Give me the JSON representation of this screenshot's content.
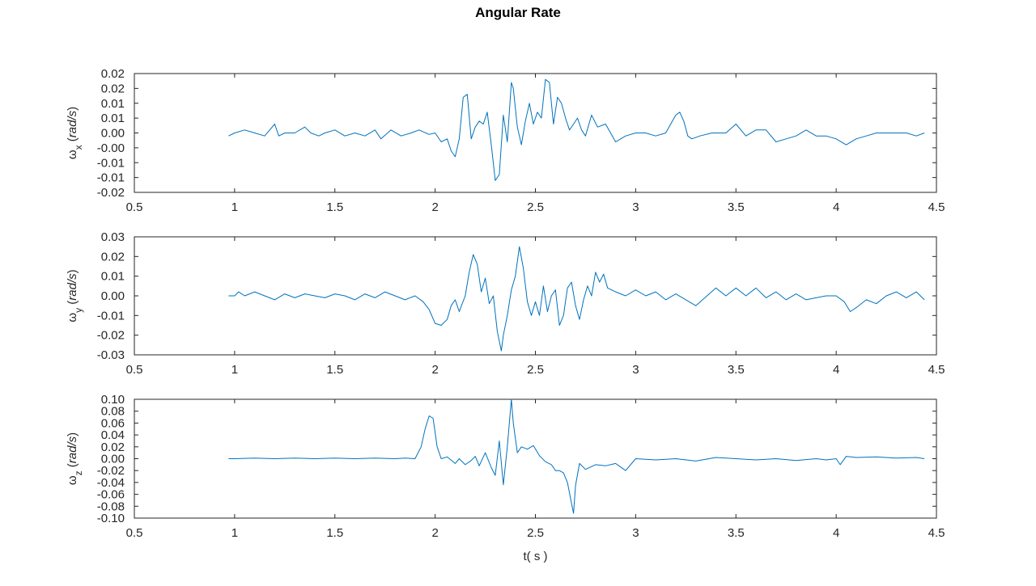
{
  "figure": {
    "title": "Angular Rate",
    "x_label": "t( s )",
    "colors": {
      "line": "#0072bd",
      "axis": "#262626",
      "background": "#ffffff"
    }
  },
  "chart_data": [
    {
      "type": "line",
      "title": "",
      "ylabel": "ωx (rad/s)",
      "ylabel_base": "ω",
      "ylabel_sub": "x",
      "ylabel_unit": "rad/s",
      "xlabel": "",
      "xlim": [
        0.5,
        4.5
      ],
      "ylim": [
        -0.02,
        0.02
      ],
      "xticks": [
        0.5,
        1,
        1.5,
        2,
        2.5,
        3,
        3.5,
        4,
        4.5
      ],
      "xtick_labels": [
        "0.5",
        "1",
        "1.5",
        "2",
        "2.5",
        "3",
        "3.5",
        "4",
        "4.5"
      ],
      "yticks": [
        -0.02,
        -0.015,
        -0.01,
        -0.005,
        0,
        0.005,
        0.01,
        0.015,
        0.02
      ],
      "ytick_labels": [
        "-0.02",
        "-0.01",
        "-0.01",
        "-0.00",
        "0.00",
        "0.01",
        "0.01",
        "0.02",
        "0.02"
      ],
      "grid": false,
      "series": [
        {
          "x": [
            0.97,
            1.0,
            1.05,
            1.1,
            1.15,
            1.2,
            1.22,
            1.25,
            1.3,
            1.35,
            1.38,
            1.42,
            1.45,
            1.5,
            1.55,
            1.6,
            1.65,
            1.7,
            1.73,
            1.78,
            1.83,
            1.88,
            1.92,
            1.97,
            2.0,
            2.03,
            2.06,
            2.08,
            2.1,
            2.12,
            2.14,
            2.16,
            2.18,
            2.2,
            2.22,
            2.24,
            2.26,
            2.28,
            2.3,
            2.32,
            2.34,
            2.36,
            2.38,
            2.39,
            2.41,
            2.43,
            2.45,
            2.47,
            2.49,
            2.51,
            2.53,
            2.55,
            2.57,
            2.59,
            2.61,
            2.63,
            2.65,
            2.67,
            2.69,
            2.71,
            2.73,
            2.75,
            2.78,
            2.81,
            2.85,
            2.9,
            2.95,
            3.0,
            3.05,
            3.1,
            3.15,
            3.2,
            3.22,
            3.24,
            3.26,
            3.28,
            3.32,
            3.38,
            3.45,
            3.5,
            3.55,
            3.6,
            3.65,
            3.7,
            3.75,
            3.8,
            3.85,
            3.9,
            3.95,
            4.0,
            4.05,
            4.1,
            4.15,
            4.2,
            4.25,
            4.3,
            4.35,
            4.4,
            4.44
          ],
          "y": [
            -0.001,
            0.0,
            0.001,
            0.0,
            -0.001,
            0.003,
            -0.001,
            0.0,
            0.0,
            0.002,
            0.0,
            -0.001,
            0.0,
            0.001,
            -0.001,
            0.0,
            -0.001,
            0.001,
            -0.002,
            0.001,
            -0.001,
            0.0,
            0.001,
            -0.0005,
            0.0,
            -0.003,
            -0.002,
            -0.006,
            -0.008,
            -0.002,
            0.012,
            0.013,
            -0.002,
            0.002,
            0.004,
            0.003,
            0.007,
            -0.004,
            -0.016,
            -0.014,
            0.006,
            -0.003,
            0.017,
            0.015,
            0.002,
            -0.004,
            0.004,
            0.01,
            0.003,
            0.007,
            0.005,
            0.018,
            0.017,
            0.003,
            0.012,
            0.01,
            0.005,
            0.001,
            0.003,
            0.005,
            0.001,
            -0.001,
            0.006,
            0.002,
            0.003,
            -0.003,
            -0.001,
            0.0,
            0.0,
            -0.001,
            0.0,
            0.006,
            0.007,
            0.004,
            -0.001,
            -0.002,
            -0.001,
            0.0,
            0.0,
            0.003,
            -0.001,
            0.001,
            0.001,
            -0.003,
            -0.002,
            -0.001,
            0.001,
            -0.001,
            -0.001,
            -0.002,
            -0.004,
            -0.002,
            -0.001,
            0.0,
            0.0,
            0.0,
            0.0,
            -0.001,
            0.0
          ]
        }
      ]
    },
    {
      "type": "line",
      "title": "",
      "ylabel": "ωy (rad/s)",
      "ylabel_base": "ω",
      "ylabel_sub": "y",
      "ylabel_unit": "rad/s",
      "xlabel": "",
      "xlim": [
        0.5,
        4.5
      ],
      "ylim": [
        -0.03,
        0.03
      ],
      "xticks": [
        0.5,
        1,
        1.5,
        2,
        2.5,
        3,
        3.5,
        4,
        4.5
      ],
      "xtick_labels": [
        "0.5",
        "1",
        "1.5",
        "2",
        "2.5",
        "3",
        "3.5",
        "4",
        "4.5"
      ],
      "yticks": [
        -0.03,
        -0.02,
        -0.01,
        0,
        0.01,
        0.02,
        0.03
      ],
      "ytick_labels": [
        "-0.03",
        "-0.02",
        "-0.01",
        "0.00",
        "0.01",
        "0.02",
        "0.03"
      ],
      "grid": false,
      "series": [
        {
          "x": [
            0.97,
            1.0,
            1.02,
            1.05,
            1.1,
            1.15,
            1.2,
            1.25,
            1.3,
            1.35,
            1.4,
            1.45,
            1.5,
            1.55,
            1.6,
            1.65,
            1.7,
            1.75,
            1.8,
            1.85,
            1.9,
            1.94,
            1.97,
            2.0,
            2.03,
            2.06,
            2.08,
            2.1,
            2.12,
            2.15,
            2.17,
            2.19,
            2.21,
            2.23,
            2.25,
            2.27,
            2.29,
            2.31,
            2.33,
            2.34,
            2.36,
            2.38,
            2.4,
            2.42,
            2.44,
            2.46,
            2.48,
            2.5,
            2.52,
            2.54,
            2.56,
            2.58,
            2.6,
            2.62,
            2.64,
            2.66,
            2.68,
            2.7,
            2.72,
            2.74,
            2.76,
            2.78,
            2.8,
            2.82,
            2.84,
            2.86,
            2.9,
            2.95,
            3.0,
            3.05,
            3.1,
            3.15,
            3.2,
            3.3,
            3.4,
            3.45,
            3.5,
            3.55,
            3.6,
            3.65,
            3.7,
            3.75,
            3.8,
            3.85,
            3.9,
            3.95,
            4.0,
            4.04,
            4.07,
            4.1,
            4.15,
            4.2,
            4.25,
            4.3,
            4.35,
            4.4,
            4.44
          ],
          "y": [
            0.0,
            0.0,
            0.002,
            0.0,
            0.002,
            0.0,
            -0.002,
            0.001,
            -0.001,
            0.001,
            0.0,
            -0.001,
            0.001,
            0.0,
            -0.002,
            0.001,
            -0.001,
            0.002,
            0.0,
            -0.002,
            0.0,
            -0.003,
            -0.007,
            -0.014,
            -0.015,
            -0.012,
            -0.005,
            -0.002,
            -0.008,
            0.0,
            0.012,
            0.021,
            0.016,
            0.002,
            0.009,
            -0.004,
            0.0,
            -0.018,
            -0.028,
            -0.02,
            -0.01,
            0.003,
            0.01,
            0.025,
            0.014,
            -0.003,
            -0.01,
            -0.003,
            -0.01,
            0.005,
            -0.008,
            0.0,
            0.003,
            -0.015,
            -0.01,
            0.004,
            0.007,
            -0.005,
            -0.012,
            -0.002,
            0.005,
            0.0,
            0.012,
            0.007,
            0.011,
            0.004,
            0.002,
            0.0,
            0.003,
            0.0,
            0.002,
            -0.002,
            0.001,
            -0.005,
            0.004,
            0.0,
            0.004,
            0.0,
            0.004,
            -0.001,
            0.002,
            -0.002,
            0.001,
            -0.002,
            -0.001,
            0.0,
            0.0,
            -0.003,
            -0.008,
            -0.006,
            -0.002,
            -0.004,
            0.0,
            0.002,
            -0.001,
            0.002,
            -0.002
          ]
        }
      ]
    },
    {
      "type": "line",
      "title": "",
      "ylabel": "ωz (rad/s)",
      "ylabel_base": "ω",
      "ylabel_sub": "z",
      "ylabel_unit": "rad/s",
      "xlabel": "t( s )",
      "xlim": [
        0.5,
        4.5
      ],
      "ylim": [
        -0.1,
        0.1
      ],
      "xticks": [
        0.5,
        1,
        1.5,
        2,
        2.5,
        3,
        3.5,
        4,
        4.5
      ],
      "xtick_labels": [
        "0.5",
        "1",
        "1.5",
        "2",
        "2.5",
        "3",
        "3.5",
        "4",
        "4.5"
      ],
      "yticks": [
        -0.1,
        -0.08,
        -0.06,
        -0.04,
        -0.02,
        0,
        0.02,
        0.04,
        0.06,
        0.08,
        0.1
      ],
      "ytick_labels": [
        "-0.10",
        "-0.08",
        "-0.06",
        "-0.04",
        "-0.02",
        "0.00",
        "0.02",
        "0.04",
        "0.06",
        "0.08",
        "0.10"
      ],
      "grid": false,
      "series": [
        {
          "x": [
            0.97,
            1.0,
            1.1,
            1.2,
            1.3,
            1.4,
            1.5,
            1.6,
            1.7,
            1.8,
            1.85,
            1.9,
            1.93,
            1.95,
            1.97,
            1.99,
            2.01,
            2.03,
            2.06,
            2.1,
            2.12,
            2.15,
            2.18,
            2.2,
            2.22,
            2.25,
            2.28,
            2.3,
            2.32,
            2.34,
            2.36,
            2.38,
            2.39,
            2.41,
            2.43,
            2.46,
            2.49,
            2.52,
            2.55,
            2.58,
            2.6,
            2.62,
            2.64,
            2.66,
            2.68,
            2.69,
            2.7,
            2.72,
            2.75,
            2.8,
            2.85,
            2.9,
            2.95,
            3.0,
            3.1,
            3.2,
            3.3,
            3.4,
            3.5,
            3.6,
            3.7,
            3.8,
            3.9,
            3.95,
            4.0,
            4.02,
            4.05,
            4.1,
            4.2,
            4.3,
            4.4,
            4.44
          ],
          "y": [
            0.0,
            0.0,
            0.001,
            0.0,
            0.001,
            0.0,
            0.001,
            0.0,
            0.001,
            0.0,
            0.001,
            0.0,
            0.02,
            0.05,
            0.072,
            0.068,
            0.02,
            0.0,
            0.003,
            -0.008,
            0.0,
            -0.01,
            -0.003,
            0.004,
            -0.012,
            0.01,
            -0.015,
            -0.028,
            0.03,
            -0.044,
            0.02,
            0.1,
            0.06,
            0.01,
            0.02,
            0.016,
            0.022,
            0.005,
            -0.005,
            -0.01,
            -0.02,
            -0.02,
            -0.024,
            -0.04,
            -0.075,
            -0.092,
            -0.045,
            -0.008,
            -0.018,
            -0.01,
            -0.012,
            -0.008,
            -0.02,
            0.0,
            -0.002,
            0.0,
            -0.004,
            0.002,
            0.0,
            -0.002,
            0.0,
            -0.003,
            0.0,
            -0.002,
            0.0,
            -0.01,
            0.004,
            0.002,
            0.003,
            0.001,
            0.002,
            0.0
          ]
        }
      ]
    }
  ]
}
